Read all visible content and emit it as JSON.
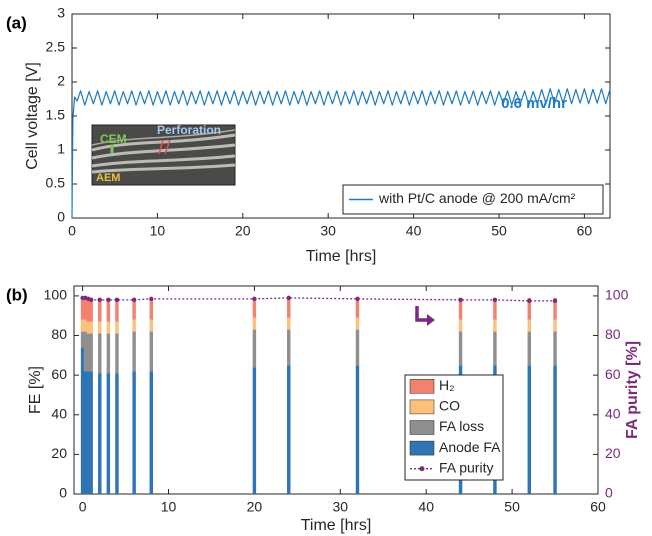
{
  "chart_data": [
    {
      "type": "line",
      "panel_label": "(a)",
      "xlabel": "Time [hrs]",
      "ylabel": "Cell voltage [V]",
      "annotation": "0.6 mv/hr",
      "annotation_color": "#1a7ac4",
      "inset_labels": [
        "CEM",
        "Perforation",
        "AEM"
      ],
      "xlim": [
        0,
        63
      ],
      "xticks": [
        0,
        10,
        20,
        30,
        40,
        50,
        60
      ],
      "ylim": [
        0,
        3
      ],
      "yticks": [
        0,
        0.5,
        1,
        1.5,
        2,
        2.5,
        3
      ],
      "legend": "lower right",
      "grid": false,
      "x": [
        0,
        0.1,
        0.3,
        0.6,
        1,
        1.5,
        2,
        2.5,
        3,
        3.5,
        4,
        4.5,
        5,
        5.5,
        6,
        6.5,
        7,
        7.5,
        8,
        8.5,
        9,
        9.5,
        10,
        10.5,
        11,
        11.5,
        12,
        12.5,
        13,
        13.5,
        14,
        14.5,
        15,
        15.5,
        16,
        16.5,
        17,
        17.5,
        18,
        18.5,
        19,
        19.5,
        20,
        20.5,
        21,
        21.5,
        22,
        22.5,
        23,
        23.5,
        24,
        24.5,
        25,
        25.5,
        26,
        26.5,
        27,
        27.5,
        28,
        28.5,
        29,
        29.5,
        30,
        30.5,
        31,
        31.5,
        32,
        32.5,
        33,
        33.5,
        34,
        34.5,
        35,
        35.5,
        36,
        36.5,
        37,
        37.5,
        38,
        38.5,
        39,
        39.5,
        40,
        40.5,
        41,
        41.5,
        42,
        42.5,
        43,
        43.5,
        44,
        44.5,
        45,
        45.5,
        46,
        46.5,
        47,
        47.5,
        48,
        48.5,
        49,
        49.5,
        50,
        50.5,
        51,
        51.5,
        52,
        52.5,
        53,
        53.5,
        54,
        54.5,
        55,
        55.5,
        56,
        56.5,
        57,
        57.5,
        58,
        58.5,
        59,
        59.5,
        60,
        60.5,
        61,
        61.5,
        62,
        62.5,
        63
      ],
      "series": [
        {
          "name": "with Pt/C anode @ 200 mA/cm²",
          "color": "#1a7ac4",
          "values": [
            0,
            1.45,
            1.78,
            1.72,
            1.87,
            1.66,
            1.86,
            1.68,
            1.87,
            1.66,
            1.86,
            1.68,
            1.87,
            1.66,
            1.86,
            1.68,
            1.87,
            1.66,
            1.86,
            1.68,
            1.87,
            1.66,
            1.86,
            1.68,
            1.87,
            1.66,
            1.86,
            1.68,
            1.87,
            1.66,
            1.86,
            1.68,
            1.87,
            1.66,
            1.86,
            1.68,
            1.87,
            1.66,
            1.86,
            1.68,
            1.87,
            1.66,
            1.86,
            1.68,
            1.87,
            1.66,
            1.86,
            1.68,
            1.87,
            1.66,
            1.86,
            1.68,
            1.87,
            1.66,
            1.86,
            1.68,
            1.87,
            1.66,
            1.86,
            1.68,
            1.87,
            1.66,
            1.86,
            1.68,
            1.87,
            1.66,
            1.86,
            1.68,
            1.87,
            1.66,
            1.86,
            1.68,
            1.87,
            1.66,
            1.86,
            1.68,
            1.87,
            1.66,
            1.86,
            1.68,
            1.87,
            1.66,
            1.86,
            1.68,
            1.87,
            1.66,
            1.86,
            1.68,
            1.87,
            1.66,
            1.86,
            1.68,
            1.87,
            1.66,
            1.86,
            1.68,
            1.87,
            1.66,
            1.86,
            1.68,
            1.87,
            1.66,
            1.86,
            1.68,
            1.87,
            1.66,
            1.86,
            1.68,
            1.87,
            1.66,
            1.86,
            1.68,
            1.89,
            1.69,
            1.9,
            1.68,
            1.89,
            1.69,
            1.9,
            1.68,
            1.89,
            1.69,
            1.9,
            1.68,
            1.89,
            1.69,
            1.9,
            1.68,
            1.89
          ]
        }
      ]
    },
    {
      "type": "bar",
      "stacked": true,
      "panel_label": "(b)",
      "xlabel": "Time [hrs]",
      "ylabel": "FE [%]",
      "y2label": "FA purity [%]",
      "xlim": [
        -1,
        60
      ],
      "xticks": [
        0,
        10,
        20,
        30,
        40,
        50,
        60
      ],
      "ylim": [
        0,
        105
      ],
      "yticks": [
        0,
        20,
        40,
        60,
        80,
        100
      ],
      "y2lim": [
        0,
        105
      ],
      "y2ticks": [
        0,
        20,
        40,
        60,
        80,
        100
      ],
      "y2color": "#7a2b7c",
      "legend": "lower right",
      "grid": false,
      "x": [
        0,
        0.33,
        0.67,
        1,
        2,
        3,
        4,
        6,
        8,
        20,
        24,
        32,
        44,
        48,
        52,
        55
      ],
      "series": [
        {
          "name": "H₂",
          "color": "#f4806f",
          "values": [
            11,
            11,
            12,
            12,
            12,
            12,
            12,
            11,
            11,
            10,
            10,
            10,
            11,
            11,
            11,
            11
          ]
        },
        {
          "name": "CO",
          "color": "#fbc07b",
          "values": [
            6,
            6,
            6,
            6,
            6,
            6,
            6,
            6,
            6,
            6,
            6,
            6,
            6,
            6,
            6,
            6
          ]
        },
        {
          "name": "FA loss",
          "color": "#8f8f8f",
          "values": [
            8,
            20,
            19,
            19,
            20,
            20,
            20,
            20,
            20,
            19,
            18,
            18,
            17,
            17,
            17,
            17
          ]
        },
        {
          "name": "Anode FA",
          "color": "#2f74b5",
          "values": [
            74,
            62,
            62,
            62,
            61,
            61,
            61,
            62,
            62,
            64,
            65,
            65,
            65,
            65,
            65,
            65
          ]
        },
        {
          "name": "FA purity",
          "color": "#7a2b7c",
          "axis": "y2",
          "values": [
            99,
            99,
            98.5,
            98,
            98,
            98,
            98,
            98,
            98.5,
            98.5,
            99,
            98.5,
            98,
            98,
            97.5,
            97.5
          ]
        }
      ]
    }
  ]
}
